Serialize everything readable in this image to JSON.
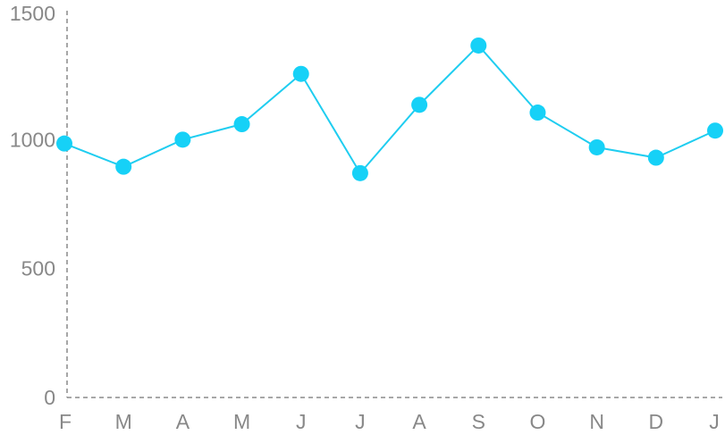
{
  "chart_data": {
    "type": "line",
    "categories": [
      "F",
      "M",
      "A",
      "M",
      "J",
      "J",
      "A",
      "S",
      "O",
      "N",
      "D",
      "J"
    ],
    "series": [
      {
        "values": [
          985,
          895,
          1000,
          1060,
          1255,
          870,
          1135,
          1365,
          1105,
          970,
          930,
          1035
        ]
      }
    ],
    "title": "",
    "xlabel": "",
    "ylabel": "",
    "ylim": [
      0,
      1500
    ],
    "yticks": [
      "0",
      "500",
      "1000",
      "1500"
    ],
    "grid": false,
    "legend": "none",
    "line_color": "#1fcdf0",
    "marker_color": "#16d1f7",
    "axis_color": "#8a8a8a",
    "label_color": "#888888"
  }
}
